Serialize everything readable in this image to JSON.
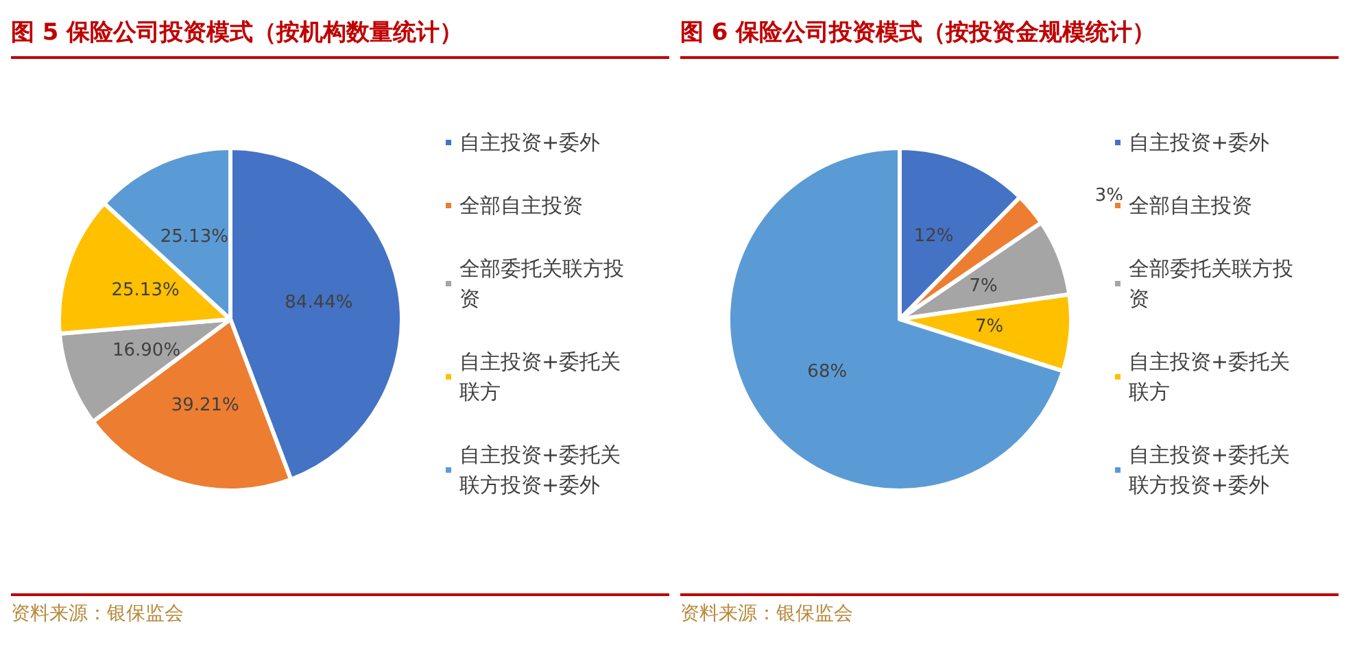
{
  "chart_data": [
    {
      "type": "pie",
      "title": "图 5 保险公司投资模式（按机构数量统计）",
      "categories": [
        "自主投资+委外",
        "全部自主投资",
        "全部委托关联方投资",
        "自主投资+委托关联方",
        "自主投资+委托关联方投资+委外"
      ],
      "values": [
        84.44,
        39.21,
        16.9,
        25.13,
        25.13
      ],
      "value_labels": [
        "84.44%",
        "39.21%",
        "16.90%",
        "25.13%",
        "25.13%"
      ],
      "colors": [
        "#4472c4",
        "#ed7d31",
        "#a5a5a5",
        "#ffc000",
        "#5b9bd5"
      ],
      "legend": "right",
      "annotations": [
        "资料来源：银保监会"
      ]
    },
    {
      "type": "pie",
      "title": "图 6 保险公司投资模式（按投资金规模统计）",
      "categories": [
        "自主投资+委外",
        "全部自主投资",
        "全部委托关联方投资",
        "自主投资+委托关联方",
        "自主投资+委托关联方投资+委外"
      ],
      "values": [
        12,
        3,
        7,
        7,
        68
      ],
      "value_labels": [
        "12%",
        "3%",
        "7%",
        "7%",
        "68%"
      ],
      "colors": [
        "#4472c4",
        "#ed7d31",
        "#a5a5a5",
        "#ffc000",
        "#5b9bd5"
      ],
      "legend": "right",
      "annotations": [
        "资料来源：银保监会"
      ]
    }
  ]
}
